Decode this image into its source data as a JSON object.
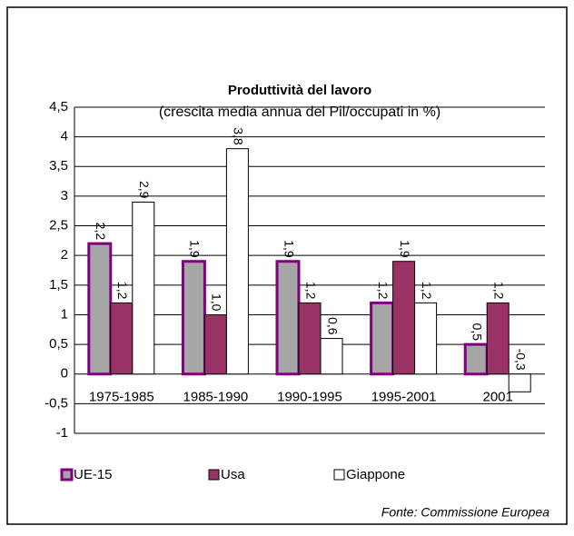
{
  "chart_data": {
    "type": "bar",
    "title": "Produttività del lavoro",
    "subtitle": "(crescita media annua del Pil/occupati in %)",
    "source": "Fonte: Commissione Europea",
    "categories": [
      "1975-1985",
      "1985-1990",
      "1990-1995",
      "1995-2001",
      "2001"
    ],
    "series": [
      {
        "name": "UE-15",
        "color": "#a6a6a6",
        "stroke": "#800080",
        "values": [
          2.2,
          1.9,
          1.9,
          1.2,
          0.5
        ],
        "value_labels": [
          "2,2",
          "1,9",
          "1,9",
          "1,2",
          "0,5"
        ]
      },
      {
        "name": "Usa",
        "color": "#993366",
        "stroke": "#000000",
        "values": [
          1.2,
          1.0,
          1.2,
          1.9,
          1.2
        ],
        "value_labels": [
          "1,2",
          "1,0",
          "1,2",
          "1,9",
          "1,2"
        ]
      },
      {
        "name": "Giappone",
        "color": "#ffffff",
        "stroke": "#000000",
        "values": [
          2.9,
          3.8,
          0.6,
          1.2,
          -0.3
        ],
        "value_labels": [
          "2,9",
          "3,8",
          "0,6",
          "1,2",
          "-0,3"
        ]
      }
    ],
    "ylim": [
      -1,
      4.5
    ],
    "yticks": [
      -1,
      {
        "value": -0.5,
        "label": "-0,5"
      },
      0,
      {
        "value": 0.5,
        "label": "0,5"
      },
      1,
      {
        "value": 1.5,
        "label": "1,5"
      },
      2,
      {
        "value": 2.5,
        "label": "2,5"
      },
      3,
      {
        "value": 3.5,
        "label": "3,5"
      },
      4,
      {
        "value": 4.5,
        "label": "4,5"
      }
    ],
    "grid": true,
    "legend": "bottom"
  }
}
